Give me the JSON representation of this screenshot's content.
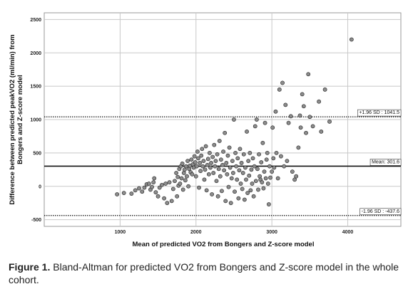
{
  "chart_data": {
    "type": "scatter",
    "xlabel": "Mean of predicted VO2 from Bongers and Z-score model",
    "ylabel": "Difference between predicted peakVO2 (ml/min) from Bongers and Z-score model",
    "xlim": [
      0,
      4700
    ],
    "ylim": [
      -600,
      2600
    ],
    "x_ticks": [
      1000,
      2000,
      3000,
      4000
    ],
    "y_ticks": [
      -500,
      0,
      500,
      1000,
      1500,
      2000,
      2500
    ],
    "grid": true,
    "reference_lines": [
      {
        "name": "upper-loa",
        "value": 1041.5,
        "label": "+1.96 SD : 1041.5",
        "style": "dotted"
      },
      {
        "name": "mean",
        "value": 301.6,
        "label": "Mean: 301.6",
        "style": "solid"
      },
      {
        "name": "lower-loa",
        "value": -437.6,
        "label": "-1.96 SD : -437.6",
        "style": "dotted"
      }
    ],
    "points": [
      [
        960,
        -120
      ],
      [
        1050,
        -100
      ],
      [
        1150,
        -110
      ],
      [
        1200,
        -60
      ],
      [
        1250,
        -30
      ],
      [
        1290,
        -80
      ],
      [
        1320,
        -20
      ],
      [
        1350,
        30
      ],
      [
        1380,
        40
      ],
      [
        1400,
        -50
      ],
      [
        1420,
        -10
      ],
      [
        1440,
        60
      ],
      [
        1450,
        120
      ],
      [
        1470,
        -90
      ],
      [
        1500,
        -150
      ],
      [
        1520,
        -20
      ],
      [
        1550,
        20
      ],
      [
        1580,
        -180
      ],
      [
        1600,
        40
      ],
      [
        1620,
        -250
      ],
      [
        1650,
        60
      ],
      [
        1680,
        -220
      ],
      [
        1700,
        -40
      ],
      [
        1720,
        80
      ],
      [
        1740,
        200
      ],
      [
        1750,
        -150
      ],
      [
        1760,
        140
      ],
      [
        1770,
        10
      ],
      [
        1780,
        260
      ],
      [
        1790,
        40
      ],
      [
        1800,
        300
      ],
      [
        1810,
        120
      ],
      [
        1820,
        340
      ],
      [
        1830,
        -50
      ],
      [
        1840,
        200
      ],
      [
        1850,
        250
      ],
      [
        1860,
        90
      ],
      [
        1870,
        300
      ],
      [
        1880,
        150
      ],
      [
        1890,
        380
      ],
      [
        1900,
        0
      ],
      [
        1910,
        260
      ],
      [
        1920,
        310
      ],
      [
        1930,
        210
      ],
      [
        1940,
        400
      ],
      [
        1950,
        180
      ],
      [
        1960,
        330
      ],
      [
        1970,
        280
      ],
      [
        1980,
        450
      ],
      [
        1990,
        360
      ],
      [
        2000,
        150
      ],
      [
        2010,
        300
      ],
      [
        2020,
        520
      ],
      [
        2030,
        420
      ],
      [
        2040,
        -20
      ],
      [
        2050,
        350
      ],
      [
        2060,
        230
      ],
      [
        2070,
        460
      ],
      [
        2080,
        560
      ],
      [
        2090,
        300
      ],
      [
        2100,
        380
      ],
      [
        2110,
        100
      ],
      [
        2120,
        250
      ],
      [
        2130,
        600
      ],
      [
        2140,
        -60
      ],
      [
        2150,
        320
      ],
      [
        2160,
        410
      ],
      [
        2170,
        180
      ],
      [
        2180,
        500
      ],
      [
        2190,
        280
      ],
      [
        2200,
        350
      ],
      [
        2210,
        -120
      ],
      [
        2220,
        440
      ],
      [
        2230,
        200
      ],
      [
        2240,
        620
      ],
      [
        2250,
        300
      ],
      [
        2260,
        380
      ],
      [
        2270,
        80
      ],
      [
        2280,
        480
      ],
      [
        2290,
        -150
      ],
      [
        2300,
        260
      ],
      [
        2310,
        680
      ],
      [
        2320,
        150
      ],
      [
        2330,
        400
      ],
      [
        2340,
        -70
      ],
      [
        2350,
        320
      ],
      [
        2360,
        520
      ],
      [
        2370,
        240
      ],
      [
        2380,
        800
      ],
      [
        2390,
        -220
      ],
      [
        2400,
        350
      ],
      [
        2410,
        180
      ],
      [
        2420,
        460
      ],
      [
        2430,
        -10
      ],
      [
        2440,
        580
      ],
      [
        2450,
        280
      ],
      [
        2460,
        -250
      ],
      [
        2470,
        120
      ],
      [
        2480,
        380
      ],
      [
        2490,
        200
      ],
      [
        2500,
        1000
      ],
      [
        2510,
        -80
      ],
      [
        2520,
        500
      ],
      [
        2530,
        300
      ],
      [
        2540,
        100
      ],
      [
        2550,
        420
      ],
      [
        2560,
        -180
      ],
      [
        2570,
        240
      ],
      [
        2580,
        560
      ],
      [
        2590,
        40
      ],
      [
        2600,
        350
      ],
      [
        2610,
        -40
      ],
      [
        2620,
        200
      ],
      [
        2630,
        480
      ],
      [
        2640,
        -200
      ],
      [
        2650,
        280
      ],
      [
        2660,
        100
      ],
      [
        2670,
        820
      ],
      [
        2680,
        -100
      ],
      [
        2690,
        380
      ],
      [
        2700,
        160
      ],
      [
        2710,
        500
      ],
      [
        2720,
        -60
      ],
      [
        2730,
        250
      ],
      [
        2740,
        40
      ],
      [
        2750,
        420
      ],
      [
        2760,
        -150
      ],
      [
        2770,
        300
      ],
      [
        2780,
        900
      ],
      [
        2790,
        80
      ],
      [
        2800,
        1000
      ],
      [
        2810,
        260
      ],
      [
        2820,
        -50
      ],
      [
        2830,
        480
      ],
      [
        2840,
        150
      ],
      [
        2850,
        100
      ],
      [
        2860,
        360
      ],
      [
        2870,
        60
      ],
      [
        2880,
        650
      ],
      [
        2890,
        -30
      ],
      [
        2900,
        220
      ],
      [
        2910,
        950
      ],
      [
        2920,
        120
      ],
      [
        2930,
        400
      ],
      [
        2940,
        500
      ],
      [
        2950,
        40
      ],
      [
        2960,
        -270
      ],
      [
        2970,
        300
      ],
      [
        2980,
        130
      ],
      [
        3000,
        220
      ],
      [
        3010,
        880
      ],
      [
        3020,
        420
      ],
      [
        3030,
        280
      ],
      [
        3050,
        1120
      ],
      [
        3060,
        500
      ],
      [
        3080,
        120
      ],
      [
        3100,
        1450
      ],
      [
        3120,
        450
      ],
      [
        3140,
        1550
      ],
      [
        3160,
        300
      ],
      [
        3180,
        1220
      ],
      [
        3200,
        380
      ],
      [
        3220,
        950
      ],
      [
        3250,
        1050
      ],
      [
        3270,
        220
      ],
      [
        3300,
        100
      ],
      [
        3320,
        150
      ],
      [
        3350,
        580
      ],
      [
        3370,
        1060
      ],
      [
        3380,
        880
      ],
      [
        3400,
        1380
      ],
      [
        3420,
        1200
      ],
      [
        3450,
        800
      ],
      [
        3480,
        1680
      ],
      [
        3500,
        1040
      ],
      [
        3540,
        900
      ],
      [
        3620,
        1270
      ],
      [
        3650,
        820
      ],
      [
        3700,
        1450
      ],
      [
        3760,
        970
      ],
      [
        4050,
        2200
      ]
    ]
  },
  "caption": {
    "label": "Figure 1.",
    "text": "Bland-Altman for predicted VO2 from Bongers and Z-score model in the whole cohort."
  }
}
